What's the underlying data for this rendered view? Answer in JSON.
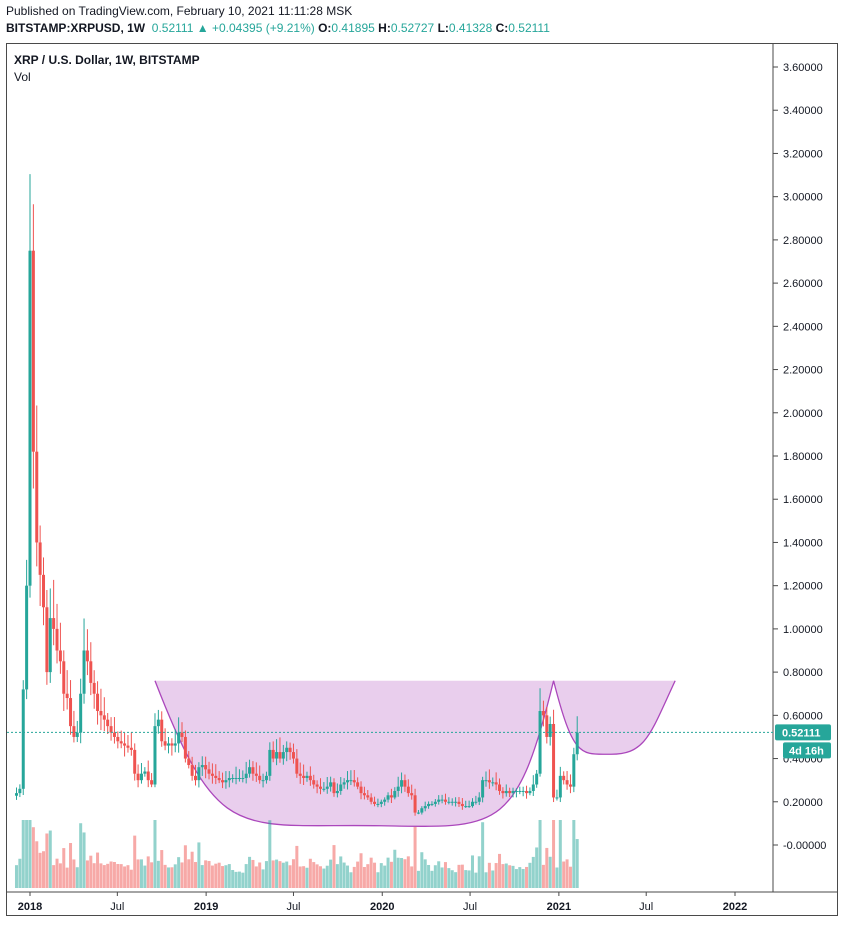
{
  "header": {
    "published": "Published on TradingView.com, February 10, 2021 11:11:28 MSK",
    "symbol": "BITSTAMP:XRPUSD, 1W",
    "last": "0.52111",
    "change": "+0.04395 (+9.21%)",
    "open_label": "O:",
    "open": "0.41895",
    "high_label": "H:",
    "high": "0.52727",
    "low_label": "L:",
    "low": "0.41328",
    "close_label": "C:",
    "close": "0.52111",
    "arrow": "▲"
  },
  "legend": {
    "title": "XRP / U.S. Dollar, 1W, BITSTAMP",
    "vol": "Vol"
  },
  "price_badge": {
    "value": "0.52111",
    "countdown": "4d 16h",
    "color": "#26a69a"
  },
  "colors": {
    "up": "#26a69a",
    "down": "#ef5350",
    "pattern_fill": "#e1bee7",
    "pattern_stroke": "#ab47bc"
  },
  "chart_data": {
    "type": "candlestick",
    "title": "XRP / U.S. Dollar, 1W, BITSTAMP",
    "y_ticks": [
      "3.60000",
      "3.40000",
      "3.20000",
      "3.00000",
      "2.80000",
      "2.60000",
      "2.40000",
      "2.20000",
      "2.00000",
      "1.80000",
      "1.60000",
      "1.40000",
      "1.20000",
      "1.00000",
      "0.80000",
      "0.60000",
      "0.40000",
      "0.20000",
      "-0.00000"
    ],
    "ylim": [
      -0.1,
      3.68
    ],
    "x_ticks": [
      {
        "label": "2018",
        "date": "2018-01-01",
        "bold": true
      },
      {
        "label": "Jul",
        "date": "2018-07-01",
        "bold": false
      },
      {
        "label": "2019",
        "date": "2019-01-01",
        "bold": true
      },
      {
        "label": "Jul",
        "date": "2019-07-01",
        "bold": false
      },
      {
        "label": "2020",
        "date": "2020-01-01",
        "bold": true
      },
      {
        "label": "Jul",
        "date": "2020-07-01",
        "bold": false
      },
      {
        "label": "2021",
        "date": "2021-01-01",
        "bold": true
      },
      {
        "label": "Jul",
        "date": "2021-07-01",
        "bold": false
      },
      {
        "label": "2022",
        "date": "2022-01-01",
        "bold": true
      }
    ],
    "price_path": [
      [
        "2017-12-04",
        0.24
      ],
      [
        "2017-12-11",
        0.26
      ],
      [
        "2017-12-18",
        0.72
      ],
      [
        "2017-12-25",
        1.2
      ],
      [
        "2018-01-01",
        2.75
      ],
      [
        "2018-01-08",
        1.82
      ],
      [
        "2018-01-15",
        1.4
      ],
      [
        "2018-01-22",
        1.25
      ],
      [
        "2018-01-29",
        1.1
      ],
      [
        "2018-02-05",
        0.8
      ],
      [
        "2018-02-12",
        1.05
      ],
      [
        "2018-02-19",
        1.0
      ],
      [
        "2018-02-26",
        0.9
      ],
      [
        "2018-03-05",
        0.85
      ],
      [
        "2018-03-12",
        0.7
      ],
      [
        "2018-03-19",
        0.68
      ],
      [
        "2018-03-26",
        0.55
      ],
      [
        "2018-04-02",
        0.5
      ],
      [
        "2018-04-09",
        0.52
      ],
      [
        "2018-04-16",
        0.7
      ],
      [
        "2018-04-23",
        0.9
      ],
      [
        "2018-04-30",
        0.85
      ],
      [
        "2018-05-07",
        0.75
      ],
      [
        "2018-05-14",
        0.7
      ],
      [
        "2018-05-21",
        0.62
      ],
      [
        "2018-05-28",
        0.6
      ],
      [
        "2018-06-04",
        0.58
      ],
      [
        "2018-06-11",
        0.55
      ],
      [
        "2018-06-18",
        0.52
      ],
      [
        "2018-06-25",
        0.5
      ],
      [
        "2018-07-02",
        0.48
      ],
      [
        "2018-07-09",
        0.47
      ],
      [
        "2018-07-16",
        0.46
      ],
      [
        "2018-07-23",
        0.45
      ],
      [
        "2018-07-30",
        0.44
      ],
      [
        "2018-08-06",
        0.33
      ],
      [
        "2018-08-13",
        0.3
      ],
      [
        "2018-08-20",
        0.33
      ],
      [
        "2018-08-27",
        0.34
      ],
      [
        "2018-09-03",
        0.3
      ],
      [
        "2018-09-10",
        0.28
      ],
      [
        "2018-09-17",
        0.55
      ],
      [
        "2018-09-24",
        0.58
      ],
      [
        "2018-10-01",
        0.48
      ],
      [
        "2018-10-08",
        0.46
      ],
      [
        "2018-10-15",
        0.47
      ],
      [
        "2018-10-22",
        0.46
      ],
      [
        "2018-10-29",
        0.47
      ],
      [
        "2018-11-05",
        0.52
      ],
      [
        "2018-11-12",
        0.5
      ],
      [
        "2018-11-19",
        0.4
      ],
      [
        "2018-11-26",
        0.37
      ],
      [
        "2018-12-03",
        0.32
      ],
      [
        "2018-12-10",
        0.3
      ],
      [
        "2018-12-17",
        0.36
      ],
      [
        "2018-12-24",
        0.37
      ],
      [
        "2018-12-31",
        0.35
      ],
      [
        "2019-01-07",
        0.33
      ],
      [
        "2019-01-14",
        0.32
      ],
      [
        "2019-01-21",
        0.31
      ],
      [
        "2019-01-28",
        0.3
      ],
      [
        "2019-02-04",
        0.29
      ],
      [
        "2019-02-11",
        0.3
      ],
      [
        "2019-02-18",
        0.31
      ],
      [
        "2019-02-25",
        0.31
      ],
      [
        "2019-03-04",
        0.31
      ],
      [
        "2019-03-11",
        0.31
      ],
      [
        "2019-03-18",
        0.31
      ],
      [
        "2019-03-25",
        0.33
      ],
      [
        "2019-04-01",
        0.36
      ],
      [
        "2019-04-08",
        0.33
      ],
      [
        "2019-04-15",
        0.32
      ],
      [
        "2019-04-22",
        0.3
      ],
      [
        "2019-04-29",
        0.3
      ],
      [
        "2019-05-06",
        0.32
      ],
      [
        "2019-05-13",
        0.44
      ],
      [
        "2019-05-20",
        0.4
      ],
      [
        "2019-05-27",
        0.43
      ],
      [
        "2019-06-03",
        0.4
      ],
      [
        "2019-06-10",
        0.43
      ],
      [
        "2019-06-17",
        0.45
      ],
      [
        "2019-06-24",
        0.43
      ],
      [
        "2019-07-01",
        0.4
      ],
      [
        "2019-07-08",
        0.33
      ],
      [
        "2019-07-15",
        0.32
      ],
      [
        "2019-07-22",
        0.31
      ],
      [
        "2019-07-29",
        0.32
      ],
      [
        "2019-08-05",
        0.3
      ],
      [
        "2019-08-12",
        0.28
      ],
      [
        "2019-08-19",
        0.27
      ],
      [
        "2019-08-26",
        0.26
      ],
      [
        "2019-09-02",
        0.26
      ],
      [
        "2019-09-09",
        0.27
      ],
      [
        "2019-09-16",
        0.29
      ],
      [
        "2019-09-23",
        0.24
      ],
      [
        "2019-09-30",
        0.25
      ],
      [
        "2019-10-07",
        0.28
      ],
      [
        "2019-10-14",
        0.29
      ],
      [
        "2019-10-21",
        0.3
      ],
      [
        "2019-10-28",
        0.3
      ],
      [
        "2019-11-04",
        0.29
      ],
      [
        "2019-11-11",
        0.27
      ],
      [
        "2019-11-18",
        0.24
      ],
      [
        "2019-11-25",
        0.23
      ],
      [
        "2019-12-02",
        0.22
      ],
      [
        "2019-12-09",
        0.2
      ],
      [
        "2019-12-16",
        0.19
      ],
      [
        "2019-12-23",
        0.19
      ],
      [
        "2019-12-30",
        0.2
      ],
      [
        "2020-01-06",
        0.21
      ],
      [
        "2020-01-13",
        0.23
      ],
      [
        "2020-01-20",
        0.22
      ],
      [
        "2020-01-27",
        0.25
      ],
      [
        "2020-02-03",
        0.27
      ],
      [
        "2020-02-10",
        0.3
      ],
      [
        "2020-02-17",
        0.27
      ],
      [
        "2020-02-24",
        0.24
      ],
      [
        "2020-03-02",
        0.23
      ],
      [
        "2020-03-09",
        0.15
      ],
      [
        "2020-03-16",
        0.15
      ],
      [
        "2020-03-23",
        0.17
      ],
      [
        "2020-03-30",
        0.18
      ],
      [
        "2020-04-06",
        0.19
      ],
      [
        "2020-04-13",
        0.19
      ],
      [
        "2020-04-20",
        0.2
      ],
      [
        "2020-04-27",
        0.21
      ],
      [
        "2020-05-04",
        0.21
      ],
      [
        "2020-05-11",
        0.2
      ],
      [
        "2020-05-18",
        0.2
      ],
      [
        "2020-05-25",
        0.2
      ],
      [
        "2020-06-01",
        0.2
      ],
      [
        "2020-06-08",
        0.19
      ],
      [
        "2020-06-15",
        0.18
      ],
      [
        "2020-06-22",
        0.18
      ],
      [
        "2020-06-29",
        0.18
      ],
      [
        "2020-07-06",
        0.2
      ],
      [
        "2020-07-13",
        0.2
      ],
      [
        "2020-07-20",
        0.22
      ],
      [
        "2020-07-27",
        0.3
      ],
      [
        "2020-08-03",
        0.3
      ],
      [
        "2020-08-10",
        0.29
      ],
      [
        "2020-08-17",
        0.29
      ],
      [
        "2020-08-24",
        0.28
      ],
      [
        "2020-08-31",
        0.25
      ],
      [
        "2020-09-07",
        0.24
      ],
      [
        "2020-09-14",
        0.25
      ],
      [
        "2020-09-21",
        0.24
      ],
      [
        "2020-09-28",
        0.25
      ],
      [
        "2020-10-05",
        0.25
      ],
      [
        "2020-10-12",
        0.25
      ],
      [
        "2020-10-19",
        0.25
      ],
      [
        "2020-10-26",
        0.24
      ],
      [
        "2020-11-02",
        0.25
      ],
      [
        "2020-11-09",
        0.28
      ],
      [
        "2020-11-16",
        0.33
      ],
      [
        "2020-11-23",
        0.62
      ],
      [
        "2020-11-30",
        0.6
      ],
      [
        "2020-12-07",
        0.5
      ],
      [
        "2020-12-14",
        0.56
      ],
      [
        "2020-12-21",
        0.22
      ],
      [
        "2020-12-28",
        0.22
      ],
      [
        "2021-01-04",
        0.32
      ],
      [
        "2021-01-11",
        0.3
      ],
      [
        "2021-01-18",
        0.28
      ],
      [
        "2021-01-25",
        0.27
      ],
      [
        "2021-02-01",
        0.42
      ],
      [
        "2021-02-08",
        0.52
      ]
    ],
    "cup_pattern": {
      "left_rim": [
        "2018-09-17",
        0.76
      ],
      "bottom": [
        "2019-11-04",
        0.09
      ],
      "right_rim": [
        "2020-12-21",
        0.76
      ],
      "handle_bottom": [
        "2021-04-19",
        0.42
      ],
      "handle_end": [
        "2021-08-30",
        0.76
      ]
    }
  }
}
